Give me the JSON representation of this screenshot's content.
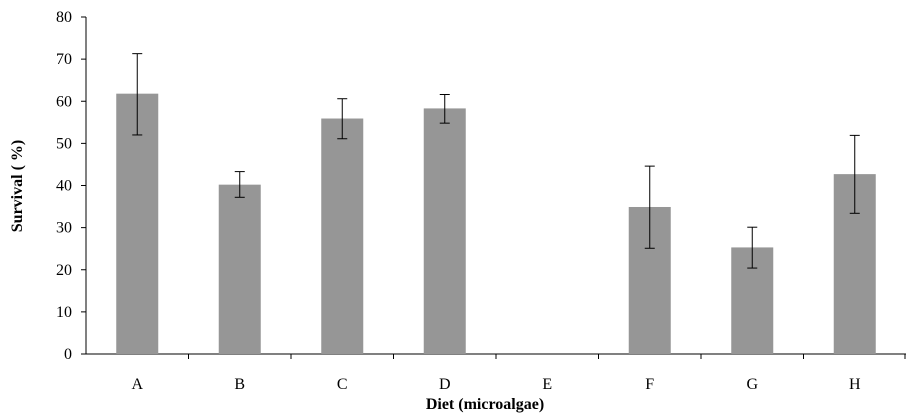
{
  "chart_data": {
    "type": "bar",
    "title": "",
    "xlabel": "Diet (microalgae)",
    "ylabel": "Survival ( %)",
    "categories": [
      "A",
      "B",
      "C",
      "D",
      "E",
      "F",
      "G",
      "H"
    ],
    "values": [
      61.8,
      40.2,
      55.9,
      58.3,
      0,
      34.9,
      25.3,
      42.7
    ],
    "error_low": [
      52.0,
      37.2,
      51.1,
      54.8,
      0,
      25.1,
      20.4,
      33.4
    ],
    "error_high": [
      71.3,
      43.3,
      60.6,
      61.6,
      0,
      44.6,
      30.1,
      51.9
    ],
    "ylim": [
      0,
      80
    ],
    "yticks": [
      0,
      10,
      20,
      30,
      40,
      50,
      60,
      70,
      80
    ],
    "grid": false,
    "legend": "none",
    "bar_color": "#969696",
    "axis_color": "#000000"
  }
}
